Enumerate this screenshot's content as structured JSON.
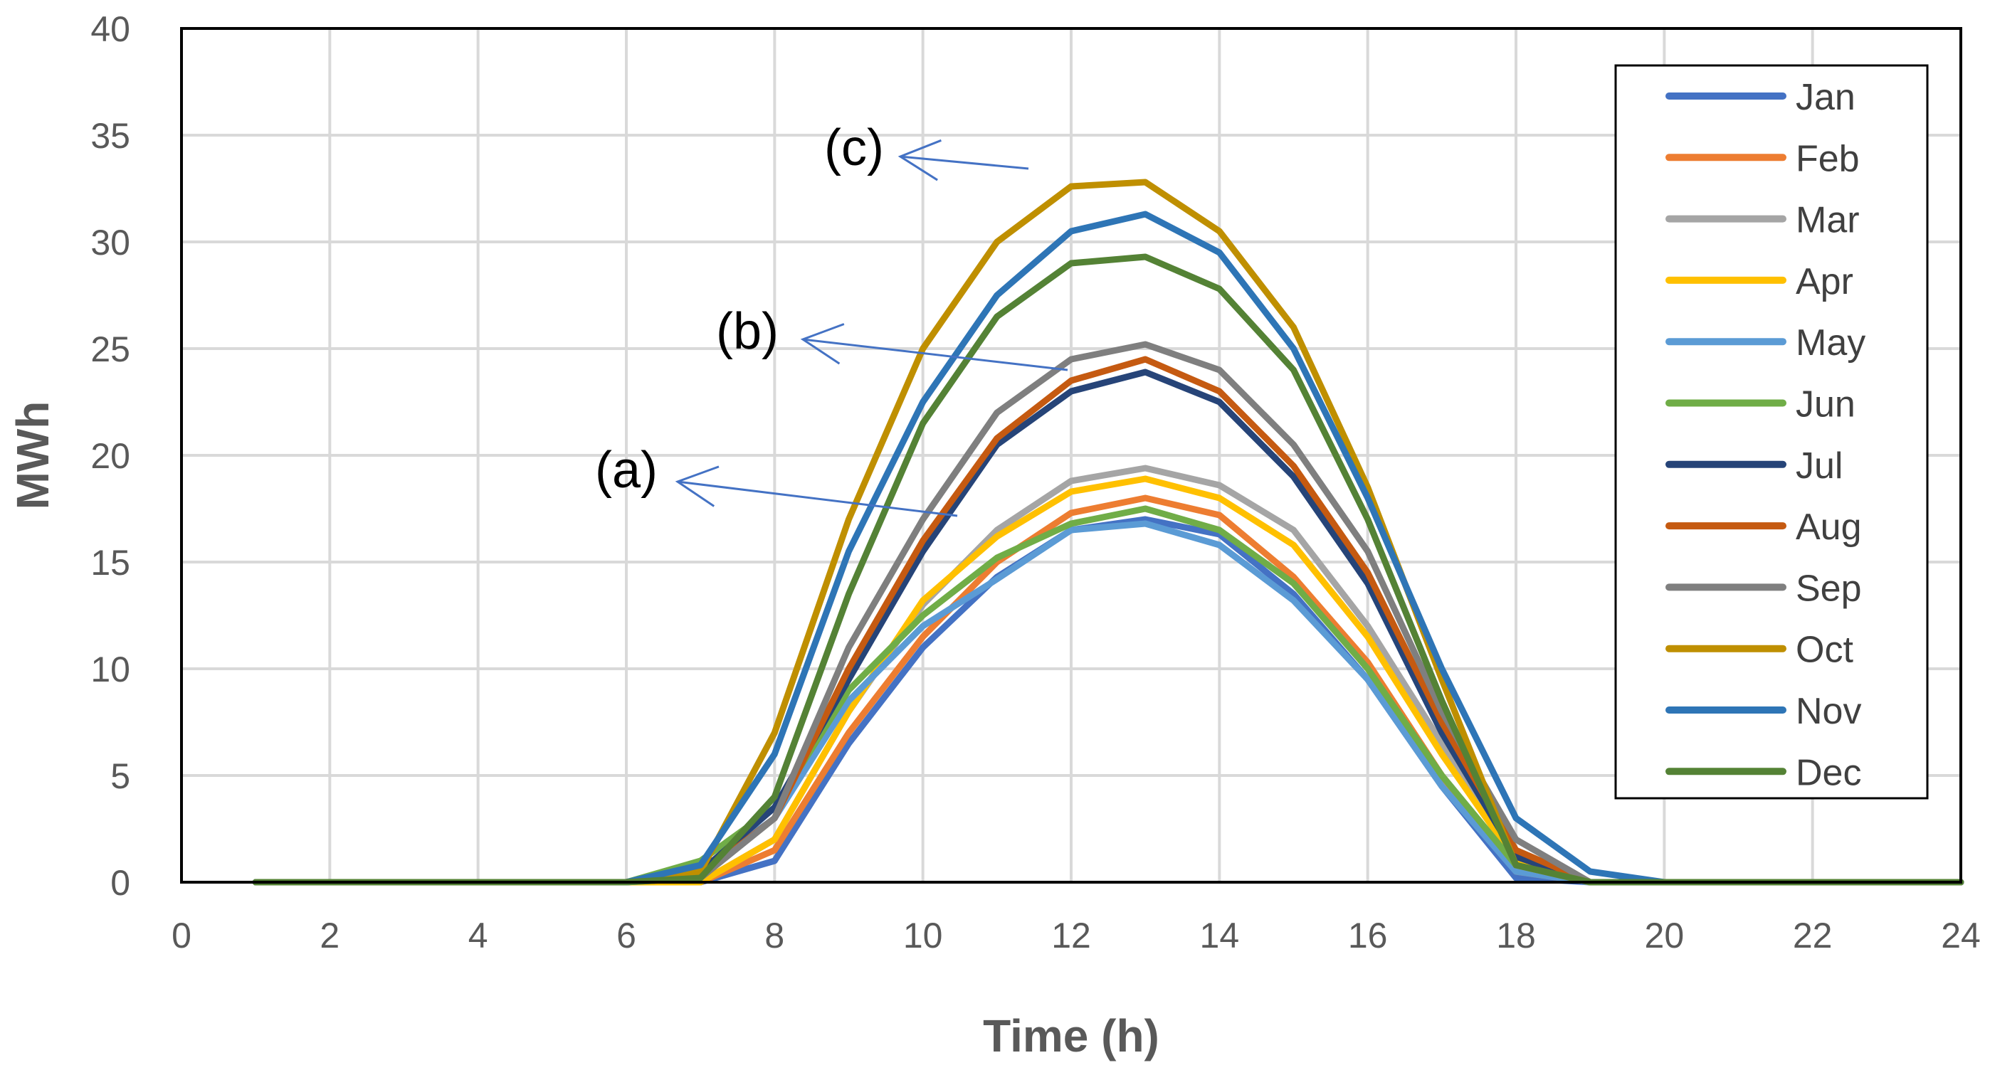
{
  "chart_data": {
    "type": "line",
    "title": "",
    "xlabel": "Time (h)",
    "ylabel": "MWh",
    "xlim": [
      0,
      24
    ],
    "ylim": [
      0,
      40
    ],
    "xticks": [
      0,
      2,
      4,
      6,
      8,
      10,
      12,
      14,
      16,
      18,
      20,
      22,
      24
    ],
    "yticks": [
      0,
      5,
      10,
      15,
      20,
      25,
      30,
      35,
      40
    ],
    "x": [
      1,
      2,
      3,
      4,
      5,
      6,
      7,
      8,
      9,
      10,
      11,
      12,
      13,
      14,
      15,
      16,
      17,
      18,
      19,
      20,
      21,
      22,
      23,
      24
    ],
    "grid": true,
    "legend_position": "right",
    "series_groups": [
      "a",
      "b",
      "c"
    ],
    "series": [
      {
        "name": "Jan",
        "color": "#4472C4",
        "group": "a",
        "values": [
          0,
          0,
          0,
          0,
          0,
          0,
          0,
          1,
          6.5,
          11,
          14.3,
          16.5,
          17,
          16.3,
          13.5,
          9.5,
          4.5,
          0.2,
          0,
          0,
          0,
          0,
          0,
          0
        ]
      },
      {
        "name": "Feb",
        "color": "#ED7D31",
        "group": "a",
        "values": [
          0,
          0,
          0,
          0,
          0,
          0,
          0,
          1.5,
          7,
          11.5,
          15,
          17.3,
          18,
          17.2,
          14.3,
          10.3,
          5,
          0.5,
          0,
          0,
          0,
          0,
          0,
          0
        ]
      },
      {
        "name": "Mar",
        "color": "#A5A5A5",
        "group": "a",
        "values": [
          0,
          0,
          0,
          0,
          0,
          0,
          0,
          2,
          8,
          13,
          16.5,
          18.8,
          19.4,
          18.6,
          16.5,
          12,
          6.5,
          1,
          0,
          0,
          0,
          0,
          0,
          0
        ]
      },
      {
        "name": "Apr",
        "color": "#FFC000",
        "group": "a",
        "values": [
          0,
          0,
          0,
          0,
          0,
          0,
          0,
          2,
          8,
          13.2,
          16.2,
          18.3,
          18.9,
          18,
          15.8,
          11.5,
          6,
          1,
          0,
          0,
          0,
          0,
          0,
          0
        ]
      },
      {
        "name": "May",
        "color": "#5B9BD5",
        "group": "a",
        "values": [
          0,
          0,
          0,
          0,
          0,
          0,
          0.5,
          3,
          8.5,
          12,
          14.2,
          16.5,
          16.8,
          15.8,
          13.2,
          9.5,
          4.5,
          0.5,
          0,
          0,
          0,
          0,
          0,
          0
        ]
      },
      {
        "name": "Jun",
        "color": "#70AD47",
        "group": "a",
        "values": [
          0,
          0,
          0,
          0,
          0,
          0,
          1,
          3.5,
          9,
          12.5,
          15.2,
          16.8,
          17.5,
          16.5,
          14,
          10,
          5,
          0.8,
          0,
          0,
          0,
          0,
          0,
          0
        ]
      },
      {
        "name": "Jul",
        "color": "#264478",
        "group": "b",
        "values": [
          0,
          0,
          0,
          0,
          0,
          0,
          0.5,
          3.5,
          9.5,
          15.5,
          20.5,
          23,
          23.9,
          22.5,
          19,
          14,
          7,
          1.2,
          0,
          0,
          0,
          0,
          0,
          0
        ]
      },
      {
        "name": "Aug",
        "color": "#C55A11",
        "group": "b",
        "values": [
          0,
          0,
          0,
          0,
          0,
          0,
          0.3,
          3,
          10,
          16,
          20.8,
          23.5,
          24.5,
          23,
          19.5,
          14.5,
          7.5,
          1.5,
          0,
          0,
          0,
          0,
          0,
          0
        ]
      },
      {
        "name": "Sep",
        "color": "#7F7F7F",
        "group": "b",
        "values": [
          0,
          0,
          0,
          0,
          0,
          0,
          0.2,
          3,
          11,
          17,
          22,
          24.5,
          25.2,
          24,
          20.5,
          15.5,
          8,
          2,
          0,
          0,
          0,
          0,
          0,
          0
        ]
      },
      {
        "name": "Oct",
        "color": "#BF8F00",
        "group": "c",
        "values": [
          0,
          0,
          0,
          0,
          0,
          0,
          0.5,
          7,
          17,
          25,
          30,
          32.6,
          32.8,
          30.5,
          26,
          18.5,
          9.5,
          0.8,
          0,
          0,
          0,
          0,
          0,
          0
        ]
      },
      {
        "name": "Nov",
        "color": "#2E75B6",
        "group": "c",
        "values": [
          0,
          0,
          0,
          0,
          0,
          0,
          0.8,
          6,
          15.5,
          22.5,
          27.5,
          30.5,
          31.3,
          29.5,
          25,
          18,
          10,
          3,
          0.5,
          0,
          0,
          0,
          0,
          0
        ]
      },
      {
        "name": "Dec",
        "color": "#548235",
        "group": "c",
        "values": [
          0,
          0,
          0,
          0,
          0,
          0,
          0.2,
          4,
          13.5,
          21.5,
          26.5,
          29,
          29.3,
          27.8,
          24,
          17,
          8.5,
          0.8,
          0,
          0,
          0,
          0,
          0,
          0
        ]
      }
    ],
    "annotations": [
      {
        "label": "(a)",
        "target_group": "a"
      },
      {
        "label": "(b)",
        "target_group": "b"
      },
      {
        "label": "(c)",
        "target_group": "c"
      }
    ]
  }
}
